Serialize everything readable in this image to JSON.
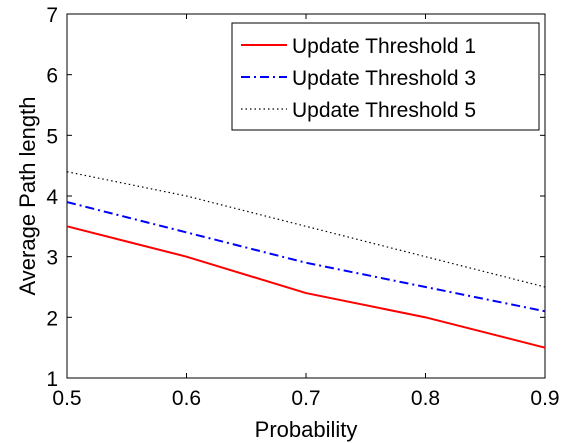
{
  "chart_data": {
    "type": "line",
    "title": "",
    "xlabel": "Probability",
    "ylabel": "Average Path length",
    "xlim": [
      0.5,
      0.9
    ],
    "ylim": [
      1,
      7
    ],
    "xticks": [
      "0.5",
      "0.6",
      "0.7",
      "0.8",
      "0.9"
    ],
    "yticks": [
      "1",
      "2",
      "3",
      "4",
      "5",
      "6",
      "7"
    ],
    "x": [
      0.5,
      0.6,
      0.7,
      0.8,
      0.9
    ],
    "grid": false,
    "legend_position": "top-right",
    "series": [
      {
        "name": "Update Threshold 1",
        "values": [
          3.5,
          3.0,
          2.4,
          2.0,
          1.5
        ],
        "color": "#ff0000",
        "style": "solid"
      },
      {
        "name": "Update Threshold 3",
        "values": [
          3.9,
          3.4,
          2.9,
          2.5,
          2.1
        ],
        "color": "#0000ff",
        "style": "dash-dot"
      },
      {
        "name": "Update Threshold 5",
        "values": [
          4.4,
          4.0,
          3.5,
          3.0,
          2.5
        ],
        "color": "#000000",
        "style": "dotted"
      }
    ]
  }
}
